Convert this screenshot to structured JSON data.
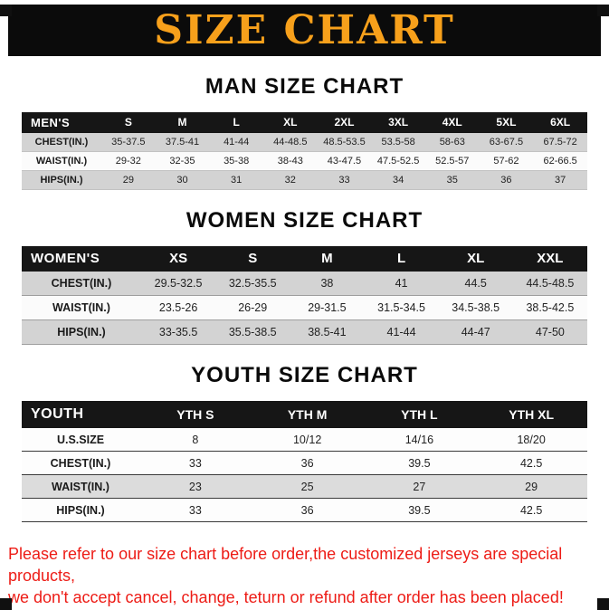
{
  "banner": {
    "title": "SIZE CHART",
    "bg_color": "#0b0b0b",
    "text_color": "#f7a01b"
  },
  "sections": [
    {
      "id": "men",
      "heading": "MAN SIZE CHART",
      "table": {
        "header": [
          "MEN'S",
          "S",
          "M",
          "L",
          "XL",
          "2XL",
          "3XL",
          "4XL",
          "5XL",
          "6XL"
        ],
        "rows": [
          [
            "CHEST(IN.)",
            "35-37.5",
            "37.5-41",
            "41-44",
            "44-48.5",
            "48.5-53.5",
            "53.5-58",
            "58-63",
            "63-67.5",
            "67.5-72"
          ],
          [
            "WAIST(IN.)",
            "29-32",
            "32-35",
            "35-38",
            "38-43",
            "43-47.5",
            "47.5-52.5",
            "52.5-57",
            "57-62",
            "62-66.5"
          ],
          [
            "HIPS(IN.)",
            "29",
            "30",
            "31",
            "32",
            "33",
            "34",
            "35",
            "36",
            "37"
          ]
        ]
      }
    },
    {
      "id": "women",
      "heading": "WOMEN SIZE CHART",
      "table": {
        "header": [
          "WOMEN'S",
          "XS",
          "S",
          "M",
          "L",
          "XL",
          "XXL"
        ],
        "rows": [
          [
            "CHEST(IN.)",
            "29.5-32.5",
            "32.5-35.5",
            "38",
            "41",
            "44.5",
            "44.5-48.5"
          ],
          [
            "WAIST(IN.)",
            "23.5-26",
            "26-29",
            "29-31.5",
            "31.5-34.5",
            "34.5-38.5",
            "38.5-42.5"
          ],
          [
            "HIPS(IN.)",
            "33-35.5",
            "35.5-38.5",
            "38.5-41",
            "41-44",
            "44-47",
            "47-50"
          ]
        ]
      }
    },
    {
      "id": "youth",
      "heading": "YOUTH SIZE CHART",
      "table": {
        "header": [
          "YOUTH",
          "YTH S",
          "YTH M",
          "YTH L",
          "YTH XL"
        ],
        "rows": [
          [
            "U.S.SIZE",
            "8",
            "10/12",
            "14/16",
            "18/20"
          ],
          [
            "CHEST(IN.)",
            "33",
            "36",
            "39.5",
            "42.5"
          ],
          [
            "WAIST(IN.)",
            "23",
            "25",
            "27",
            "29"
          ],
          [
            "HIPS(IN.)",
            "33",
            "36",
            "39.5",
            "42.5"
          ]
        ]
      }
    }
  ],
  "footer": {
    "line1": "Please refer to our size chart before order,the customized jerseys are special products,",
    "line2": "we don't accept cancel, change, teturn or refund after order has been placed!",
    "text_color": "#ed1c16"
  }
}
